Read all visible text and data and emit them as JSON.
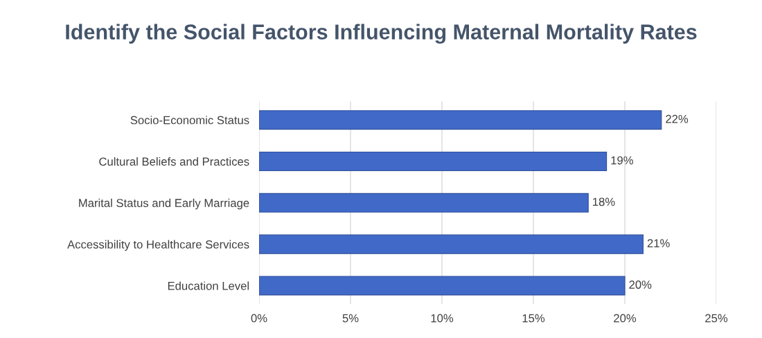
{
  "chart_data": {
    "type": "bar",
    "orientation": "horizontal",
    "title": "Identify the Social Factors Influencing Maternal Mortality Rates",
    "categories": [
      "Socio-Economic Status",
      "Cultural Beliefs and Practices",
      "Marital Status and Early Marriage",
      "Accessibility to Healthcare Services",
      "Education Level"
    ],
    "values": [
      22,
      19,
      18,
      21,
      20
    ],
    "value_labels": [
      "22%",
      "19%",
      "18%",
      "21%",
      "20%"
    ],
    "color": "#4169c8",
    "xlim": [
      0,
      25
    ],
    "xticks": [
      {
        "value": 0,
        "label": "0%"
      },
      {
        "value": 5,
        "label": "5%"
      },
      {
        "value": 10,
        "label": "10%"
      },
      {
        "value": 15,
        "label": "15%"
      },
      {
        "value": 20,
        "label": "20%"
      },
      {
        "value": 25,
        "label": "25%"
      }
    ],
    "grid": "x"
  }
}
